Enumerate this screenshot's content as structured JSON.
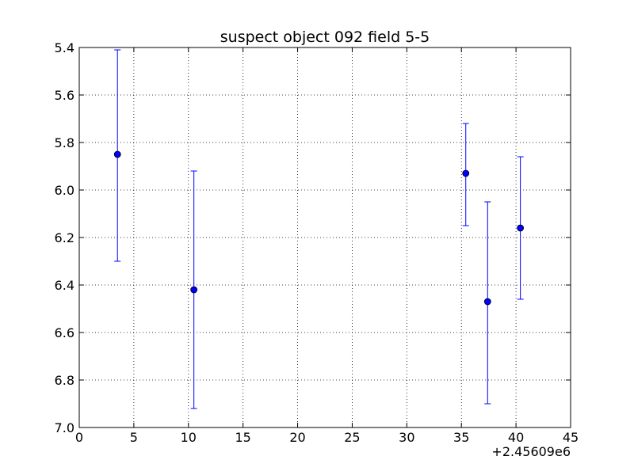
{
  "chart_data": {
    "type": "scatter",
    "title": "suspect object 092 field 5-5",
    "xlabel": "",
    "ylabel": "",
    "x_offset_label": "+2.45609e6",
    "xlim": [
      0,
      45
    ],
    "ylim": [
      7.0,
      5.4
    ],
    "y_inverted": true,
    "grid": true,
    "x_ticks": [
      0,
      5,
      10,
      15,
      20,
      25,
      30,
      35,
      40,
      45
    ],
    "x_tick_labels": [
      "0",
      "5",
      "10",
      "15",
      "20",
      "25",
      "30",
      "35",
      "40",
      "45"
    ],
    "y_ticks": [
      5.4,
      5.6,
      5.8,
      6.0,
      6.2,
      6.4,
      6.6,
      6.8,
      7.0
    ],
    "y_tick_labels": [
      "5.4",
      "5.6",
      "5.8",
      "6.0",
      "6.2",
      "6.4",
      "6.6",
      "6.8",
      "7.0"
    ],
    "series": [
      {
        "color": "#0000ff",
        "marker": "circle",
        "points": [
          {
            "x": 3.5,
            "y": 5.85,
            "yerr_low": 5.41,
            "yerr_high": 6.3
          },
          {
            "x": 10.5,
            "y": 6.42,
            "yerr_low": 5.92,
            "yerr_high": 6.92
          },
          {
            "x": 35.4,
            "y": 5.93,
            "yerr_low": 5.72,
            "yerr_high": 6.15
          },
          {
            "x": 37.4,
            "y": 6.47,
            "yerr_low": 6.05,
            "yerr_high": 6.9
          },
          {
            "x": 40.4,
            "y": 6.16,
            "yerr_low": 5.86,
            "yerr_high": 6.46
          }
        ]
      }
    ]
  }
}
